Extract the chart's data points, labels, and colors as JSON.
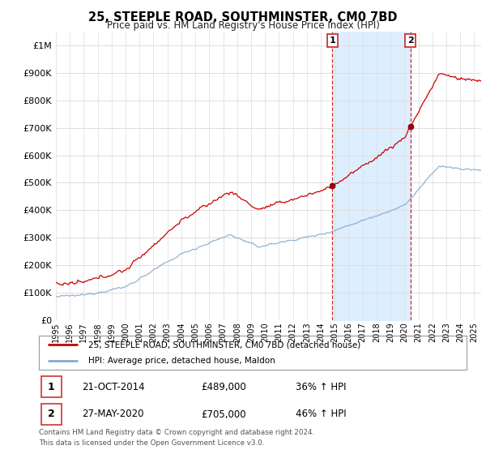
{
  "title": "25, STEEPLE ROAD, SOUTHMINSTER, CM0 7BD",
  "subtitle": "Price paid vs. HM Land Registry's House Price Index (HPI)",
  "legend_line1": "25, STEEPLE ROAD, SOUTHMINSTER, CM0 7BD (detached house)",
  "legend_line2": "HPI: Average price, detached house, Maldon",
  "sale1_date": "21-OCT-2014",
  "sale1_price": "£489,000",
  "sale1_hpi": "36% ↑ HPI",
  "sale1_year": 2014.83,
  "sale1_value": 489000,
  "sale2_date": "27-MAY-2020",
  "sale2_price": "£705,000",
  "sale2_hpi": "46% ↑ HPI",
  "sale2_year": 2020.42,
  "sale2_value": 705000,
  "footer1": "Contains HM Land Registry data © Crown copyright and database right 2024.",
  "footer2": "This data is licensed under the Open Government Licence v3.0.",
  "red_color": "#cc0000",
  "blue_color": "#88aacc",
  "shade_color": "#ddeeff",
  "marker_edge_color": "#cc2222",
  "grid_color": "#dddddd",
  "ylim": [
    0,
    1050000
  ],
  "xlim_start": 1995.0,
  "xlim_end": 2025.5,
  "yticks": [
    0,
    100000,
    200000,
    300000,
    400000,
    500000,
    600000,
    700000,
    800000,
    900000,
    1000000
  ],
  "ylabels": [
    "£0",
    "£100K",
    "£200K",
    "£300K",
    "£400K",
    "£500K",
    "£600K",
    "£700K",
    "£800K",
    "£900K",
    "£1M"
  ]
}
